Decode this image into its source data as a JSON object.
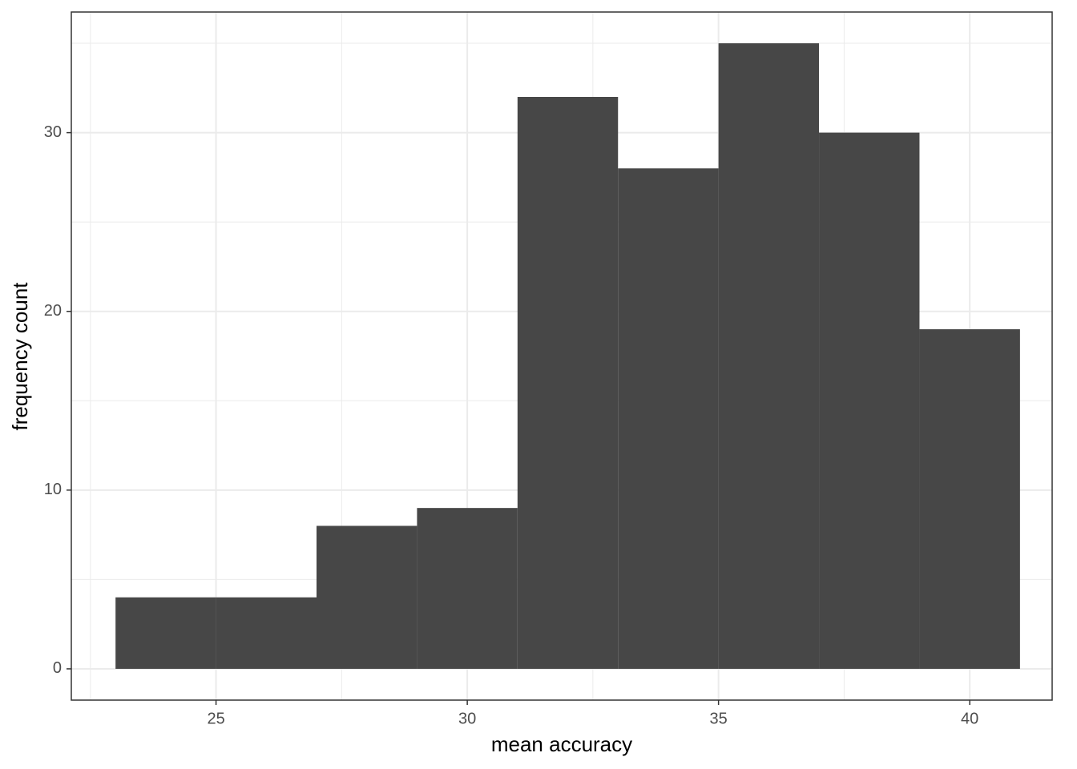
{
  "chart_data": {
    "type": "histogram",
    "x_label": "mean accuracy",
    "y_label": "frequency count",
    "bins": [
      23,
      25,
      27,
      29,
      31,
      33,
      35,
      37,
      39,
      41
    ],
    "values": [
      4,
      4,
      8,
      9,
      32,
      28,
      35,
      30,
      19
    ],
    "color": "#474747",
    "xlim": [
      22.12,
      41.64
    ],
    "xticks": [
      25,
      30,
      35,
      40
    ],
    "xminor": [
      22.5,
      27.5,
      32.5,
      37.5
    ],
    "ylim": [
      -1.75,
      36.75
    ],
    "yticks": [
      0,
      10,
      20,
      30
    ],
    "yminor": [
      5,
      15,
      25,
      35
    ],
    "grid": true
  }
}
